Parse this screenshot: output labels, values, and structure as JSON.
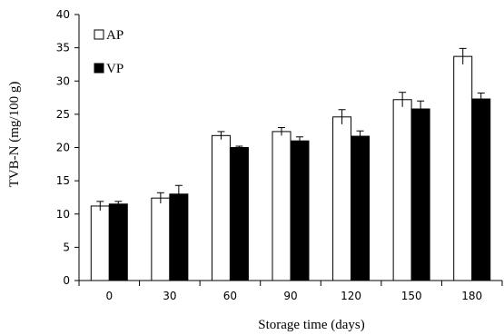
{
  "chart_data": {
    "type": "bar",
    "xlabel": "Storage time (days)",
    "ylabel": "TVB-N (mg/100 g)",
    "categories": [
      "0",
      "30",
      "60",
      "90",
      "120",
      "150",
      "180"
    ],
    "ylim": [
      0,
      40
    ],
    "yticks": [
      "0",
      "5",
      "10",
      "15",
      "20",
      "25",
      "30",
      "35",
      "40"
    ],
    "grid": false,
    "legend_position": "top-left",
    "series": [
      {
        "name": "AP",
        "color": "#ffffff",
        "values": [
          11.2,
          12.4,
          21.8,
          22.4,
          24.6,
          27.2,
          33.7
        ],
        "errors": [
          0.7,
          0.8,
          0.6,
          0.6,
          1.1,
          1.1,
          1.2
        ]
      },
      {
        "name": "VP",
        "color": "#000000",
        "values": [
          11.5,
          13.0,
          20.0,
          21.0,
          21.7,
          25.8,
          27.3
        ],
        "errors": [
          0.4,
          1.3,
          0.2,
          0.6,
          0.8,
          1.2,
          0.9
        ]
      }
    ]
  }
}
